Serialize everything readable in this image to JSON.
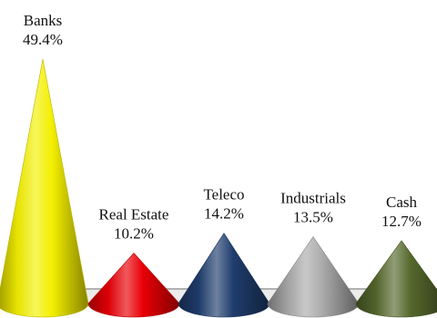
{
  "chart_data": {
    "type": "bar",
    "categories": [
      "Banks",
      "Real Estate",
      "Teleco",
      "Industrials",
      "Cash"
    ],
    "values": [
      49.4,
      10.2,
      14.2,
      13.5,
      12.7
    ],
    "value_labels": [
      "49.4%",
      "10.2%",
      "14.2%",
      "13.5%",
      "12.7%"
    ],
    "unit": "%",
    "bar_shape": "cone",
    "grid": false,
    "legend": "none",
    "colors": [
      "#f3ef00",
      "#e80006",
      "#1f3d6d",
      "#ababab",
      "#55682c"
    ]
  }
}
